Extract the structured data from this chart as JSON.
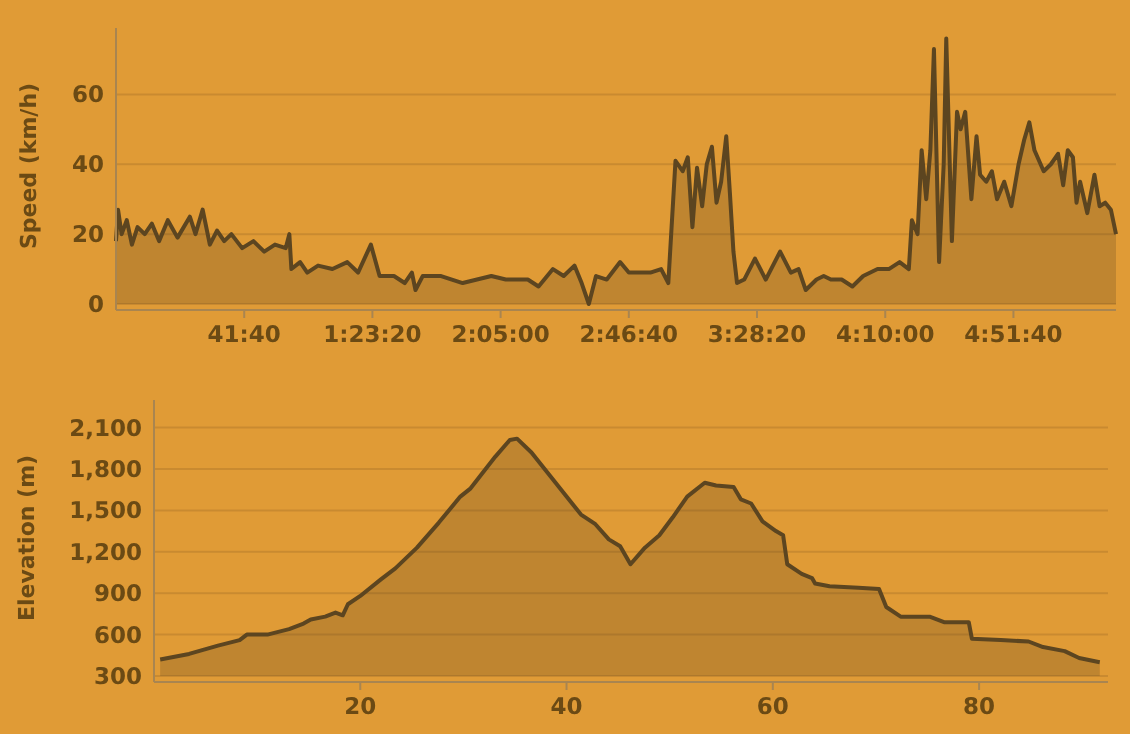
{
  "chart_data": [
    {
      "type": "area",
      "ylabel": "Speed (km/h)",
      "grid": "y",
      "color": "#5c4520",
      "xlim": [
        0,
        19500
      ],
      "ylim": [
        0,
        79
      ],
      "yticks": [
        0,
        20,
        40,
        60
      ],
      "xticks": [
        {
          "value": 2500,
          "label": "41:40"
        },
        {
          "value": 5000,
          "label": "1:23:20"
        },
        {
          "value": 7500,
          "label": "2:05:00"
        },
        {
          "value": 10000,
          "label": "2:46:40"
        },
        {
          "value": 12500,
          "label": "3:28:20"
        },
        {
          "value": 15000,
          "label": "4:10:00"
        },
        {
          "value": 17500,
          "label": "4:51:40"
        }
      ],
      "x": [
        0,
        40,
        110,
        210,
        310,
        420,
        560,
        700,
        840,
        1010,
        1200,
        1440,
        1550,
        1690,
        1830,
        1970,
        2110,
        2250,
        2460,
        2680,
        2890,
        3100,
        3310,
        3380,
        3420,
        3590,
        3730,
        3940,
        4220,
        4510,
        4720,
        4970,
        5140,
        5420,
        5630,
        5770,
        5840,
        5980,
        6340,
        6760,
        7040,
        7320,
        7600,
        8030,
        8240,
        8520,
        8730,
        8940,
        9080,
        9220,
        9360,
        9570,
        9830,
        10000,
        10420,
        10630,
        10770,
        10910,
        11050,
        11150,
        11240,
        11330,
        11430,
        11520,
        11620,
        11710,
        11800,
        11900,
        11970,
        12040,
        12110,
        12250,
        12460,
        12670,
        12950,
        13160,
        13310,
        13450,
        13660,
        13800,
        13940,
        14150,
        14360,
        14570,
        14850,
        15070,
        15280,
        15460,
        15520,
        15630,
        15710,
        15800,
        15880,
        15950,
        16050,
        16140,
        16190,
        16300,
        16400,
        16470,
        16560,
        16680,
        16780,
        16850,
        16970,
        17080,
        17180,
        17320,
        17460,
        17600,
        17710,
        17810,
        17910,
        18090,
        18230,
        18370,
        18470,
        18560,
        18660,
        18730,
        18800,
        18940,
        19080,
        19180,
        19290,
        19400,
        19500
      ],
      "values": [
        18,
        27,
        20,
        24,
        17,
        22,
        20,
        23,
        18,
        24,
        19,
        25,
        20,
        27,
        17,
        21,
        18,
        20,
        16,
        18,
        15,
        17,
        16,
        20,
        10,
        12,
        9,
        11,
        10,
        12,
        9,
        17,
        8,
        8,
        6,
        9,
        4,
        8,
        8,
        6,
        7,
        8,
        7,
        7,
        5,
        10,
        8,
        11,
        6,
        0,
        8,
        7,
        12,
        9,
        9,
        10,
        6,
        41,
        38,
        42,
        22,
        39,
        28,
        40,
        45,
        29,
        35,
        48,
        32,
        15,
        6,
        7,
        13,
        7,
        15,
        9,
        10,
        4,
        7,
        8,
        7,
        7,
        5,
        8,
        10,
        10,
        12,
        10,
        24,
        20,
        44,
        30,
        44,
        73,
        12,
        40,
        76,
        18,
        55,
        50,
        55,
        30,
        48,
        37,
        35,
        38,
        30,
        35,
        28,
        40,
        47,
        52,
        44,
        38,
        40,
        43,
        34,
        44,
        42,
        29,
        35,
        26,
        37,
        28,
        29,
        27,
        20
      ]
    },
    {
      "type": "area",
      "ylabel": "Elevation (m)",
      "grid": "y",
      "color": "#5c4520",
      "xlim": [
        0,
        92.5
      ],
      "xticks": [
        20,
        40,
        60,
        80
      ],
      "ylim": [
        300,
        2300
      ],
      "yticks": [
        {
          "value": 300,
          "label": "300"
        },
        {
          "value": 600,
          "label": "600"
        },
        {
          "value": 900,
          "label": "900"
        },
        {
          "value": 1200,
          "label": "1,200"
        },
        {
          "value": 1500,
          "label": "1,500"
        },
        {
          "value": 1800,
          "label": "1,800"
        },
        {
          "value": 2100,
          "label": "2,100"
        }
      ],
      "x": [
        0.6,
        3.4,
        6.2,
        8.3,
        9.0,
        11,
        13.1,
        14.5,
        15.2,
        16.6,
        17.6,
        18.3,
        18.8,
        20,
        22,
        23.4,
        25.5,
        27.6,
        29.7,
        30.7,
        33.1,
        34.5,
        35.2,
        36.6,
        40,
        41.4,
        42.8,
        44.1,
        45.2,
        46.2,
        47.6,
        49,
        50.3,
        51.7,
        53.4,
        54.5,
        56.2,
        56.9,
        57.9,
        59,
        60.3,
        61,
        61.4,
        62.8,
        63.8,
        64.1,
        65.5,
        68.3,
        70.3,
        71,
        72.4,
        75.2,
        76.6,
        79,
        79.3,
        82.1,
        84.8,
        86.2,
        88.3,
        89.7,
        91.7
      ],
      "values": [
        420,
        460,
        520,
        560,
        600,
        600,
        640,
        680,
        710,
        730,
        760,
        740,
        820,
        880,
        1000,
        1080,
        1230,
        1410,
        1600,
        1660,
        1890,
        2010,
        2020,
        1920,
        1600,
        1470,
        1400,
        1290,
        1240,
        1110,
        1230,
        1320,
        1450,
        1600,
        1700,
        1680,
        1670,
        1580,
        1550,
        1420,
        1350,
        1320,
        1110,
        1040,
        1010,
        970,
        950,
        940,
        930,
        800,
        730,
        730,
        690,
        690,
        570,
        560,
        550,
        510,
        480,
        430,
        400
      ]
    }
  ]
}
